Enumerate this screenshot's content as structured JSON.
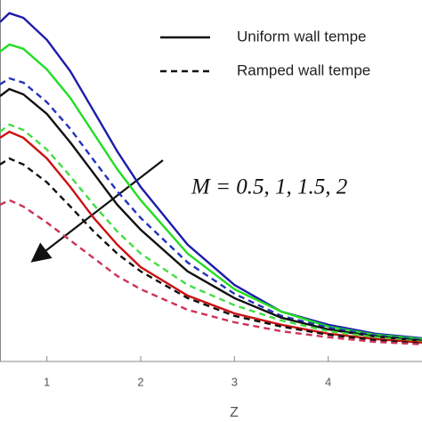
{
  "chart_data": {
    "type": "line",
    "x_label": "Z",
    "annotation": "M = 0.5, 1, 1.5, 2",
    "legend": [
      {
        "label": "Uniform wall tempe",
        "dash": "solid"
      },
      {
        "label": "Ramped wall tempe",
        "dash": "dashed"
      }
    ],
    "x": [
      0.5,
      0.6,
      0.75,
      1,
      1.25,
      1.5,
      1.75,
      2,
      2.5,
      3,
      3.5,
      4,
      4.5,
      5
    ],
    "xlim": [
      0.5,
      5
    ],
    "xticks": [
      1,
      2,
      3,
      4
    ],
    "ylim": [
      0,
      1
    ],
    "series": [
      {
        "color": "#1c1caa",
        "dash": "solid",
        "values": [
          0.953,
          0.978,
          0.965,
          0.903,
          0.815,
          0.703,
          0.59,
          0.49,
          0.328,
          0.215,
          0.14,
          0.103,
          0.078,
          0.065
        ]
      },
      {
        "color": "#22dd22",
        "dash": "solid",
        "values": [
          0.87,
          0.89,
          0.878,
          0.82,
          0.74,
          0.64,
          0.54,
          0.453,
          0.303,
          0.203,
          0.14,
          0.098,
          0.075,
          0.063
        ]
      },
      {
        "color": "#2233bb",
        "dash": "dashed",
        "values": [
          0.778,
          0.795,
          0.783,
          0.728,
          0.653,
          0.565,
          0.478,
          0.403,
          0.278,
          0.19,
          0.128,
          0.095,
          0.073,
          0.06
        ]
      },
      {
        "color": "#111111",
        "dash": "solid",
        "values": [
          0.745,
          0.765,
          0.75,
          0.695,
          0.615,
          0.528,
          0.44,
          0.37,
          0.253,
          0.178,
          0.123,
          0.09,
          0.07,
          0.058
        ]
      },
      {
        "color": "#44dd44",
        "dash": "dashed",
        "values": [
          0.645,
          0.665,
          0.65,
          0.595,
          0.52,
          0.44,
          0.365,
          0.303,
          0.215,
          0.158,
          0.115,
          0.085,
          0.068,
          0.055
        ]
      },
      {
        "color": "#cc1111",
        "dash": "solid",
        "values": [
          0.628,
          0.645,
          0.628,
          0.57,
          0.49,
          0.403,
          0.328,
          0.265,
          0.185,
          0.135,
          0.103,
          0.078,
          0.063,
          0.053
        ]
      },
      {
        "color": "#111111",
        "dash": "dashed",
        "values": [
          0.553,
          0.57,
          0.553,
          0.503,
          0.435,
          0.365,
          0.303,
          0.253,
          0.178,
          0.128,
          0.098,
          0.075,
          0.06,
          0.05
        ]
      },
      {
        "color": "#cc3355",
        "dash": "dashed",
        "values": [
          0.44,
          0.453,
          0.435,
          0.39,
          0.34,
          0.29,
          0.24,
          0.203,
          0.145,
          0.11,
          0.085,
          0.068,
          0.055,
          0.048
        ]
      }
    ]
  }
}
